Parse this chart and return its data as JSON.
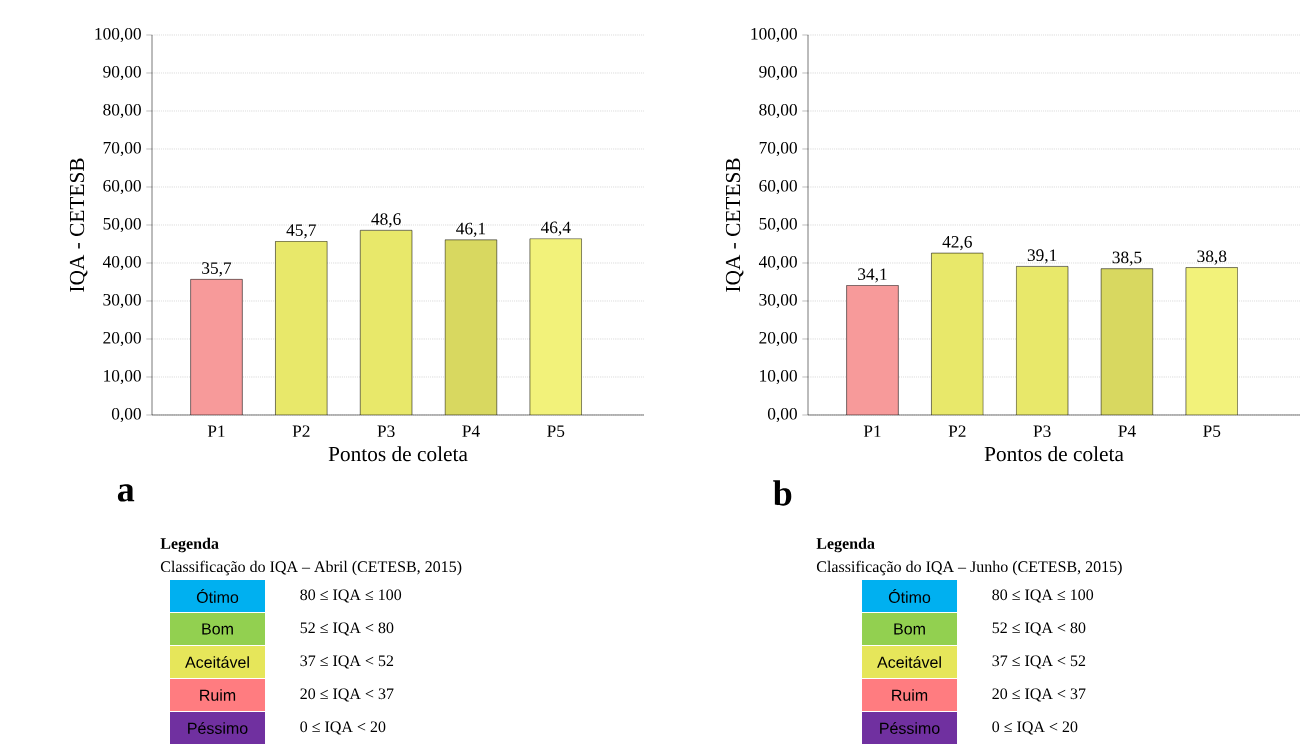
{
  "chart_data": [
    {
      "type": "bar",
      "categories": [
        "P1",
        "P2",
        "P3",
        "P4",
        "P5"
      ],
      "values": [
        35.7,
        45.7,
        48.6,
        46.1,
        46.4
      ],
      "colors": [
        "#f79a9a",
        "#e8e86a",
        "#e8e86a",
        "#d8d860",
        "#f2f27a"
      ],
      "value_labels": [
        "35,7",
        "45,7",
        "48,6",
        "46,1",
        "46,4"
      ],
      "xlabel": "Pontos de coleta",
      "ylabel": "IQA - CETESB",
      "ylim": [
        0,
        100
      ],
      "yticks": [
        {
          "value": 0,
          "label": "0,00"
        },
        {
          "value": 10,
          "label": "10,00"
        },
        {
          "value": 20,
          "label": "20,00"
        },
        {
          "value": 30,
          "label": "30,00"
        },
        {
          "value": 40,
          "label": "40,00"
        },
        {
          "value": 50,
          "label": "50,00"
        },
        {
          "value": 60,
          "label": "60,00"
        },
        {
          "value": 70,
          "label": "70,00"
        },
        {
          "value": 80,
          "label": "80,00"
        },
        {
          "value": 90,
          "label": "90,00"
        },
        {
          "value": 100,
          "label": "100,00"
        }
      ],
      "grid": "y",
      "annotations": [
        "a",
        "Legenda",
        "Classificação do IQA – Abril (CETESB, 2015)",
        "Ótimo",
        "80 ≤ IQA ≤ 100",
        "Bom",
        "52 ≤ IQA < 80",
        "Aceitável",
        "37 ≤ IQA < 52",
        "Ruim",
        "20 ≤ IQA < 37",
        "Péssimo",
        "0 ≤ IQA < 20"
      ]
    },
    {
      "type": "bar",
      "categories": [
        "P1",
        "P2",
        "P3",
        "P4",
        "P5"
      ],
      "values": [
        34.1,
        42.6,
        39.1,
        38.5,
        38.8
      ],
      "colors": [
        "#f79a9a",
        "#e8e86a",
        "#e8e86a",
        "#d8d860",
        "#f2f27a"
      ],
      "value_labels": [
        "34,1",
        "42,6",
        "39,1",
        "38,5",
        "38,8"
      ],
      "xlabel": "Pontos de coleta",
      "ylabel": "IQA - CETESB",
      "ylim": [
        0,
        100
      ],
      "yticks": [
        {
          "value": 0,
          "label": "0,00"
        },
        {
          "value": 10,
          "label": "10,00"
        },
        {
          "value": 20,
          "label": "20,00"
        },
        {
          "value": 30,
          "label": "30,00"
        },
        {
          "value": 40,
          "label": "40,00"
        },
        {
          "value": 50,
          "label": "50,00"
        },
        {
          "value": 60,
          "label": "60,00"
        },
        {
          "value": 70,
          "label": "70,00"
        },
        {
          "value": 80,
          "label": "80,00"
        },
        {
          "value": 90,
          "label": "90,00"
        },
        {
          "value": 100,
          "label": "100,00"
        }
      ],
      "grid": "y",
      "annotations": [
        "b",
        "Legenda",
        "Classificação do IQA – Junho (CETESB, 2015)",
        "Ótimo",
        "80 ≤ IQA ≤ 100",
        "Bom",
        "52 ≤ IQA < 80",
        "Aceitável",
        "37 ≤ IQA < 52",
        "Ruim",
        "20 ≤ IQA < 37",
        "Péssimo",
        "0 ≤ IQA < 20"
      ]
    }
  ]
}
